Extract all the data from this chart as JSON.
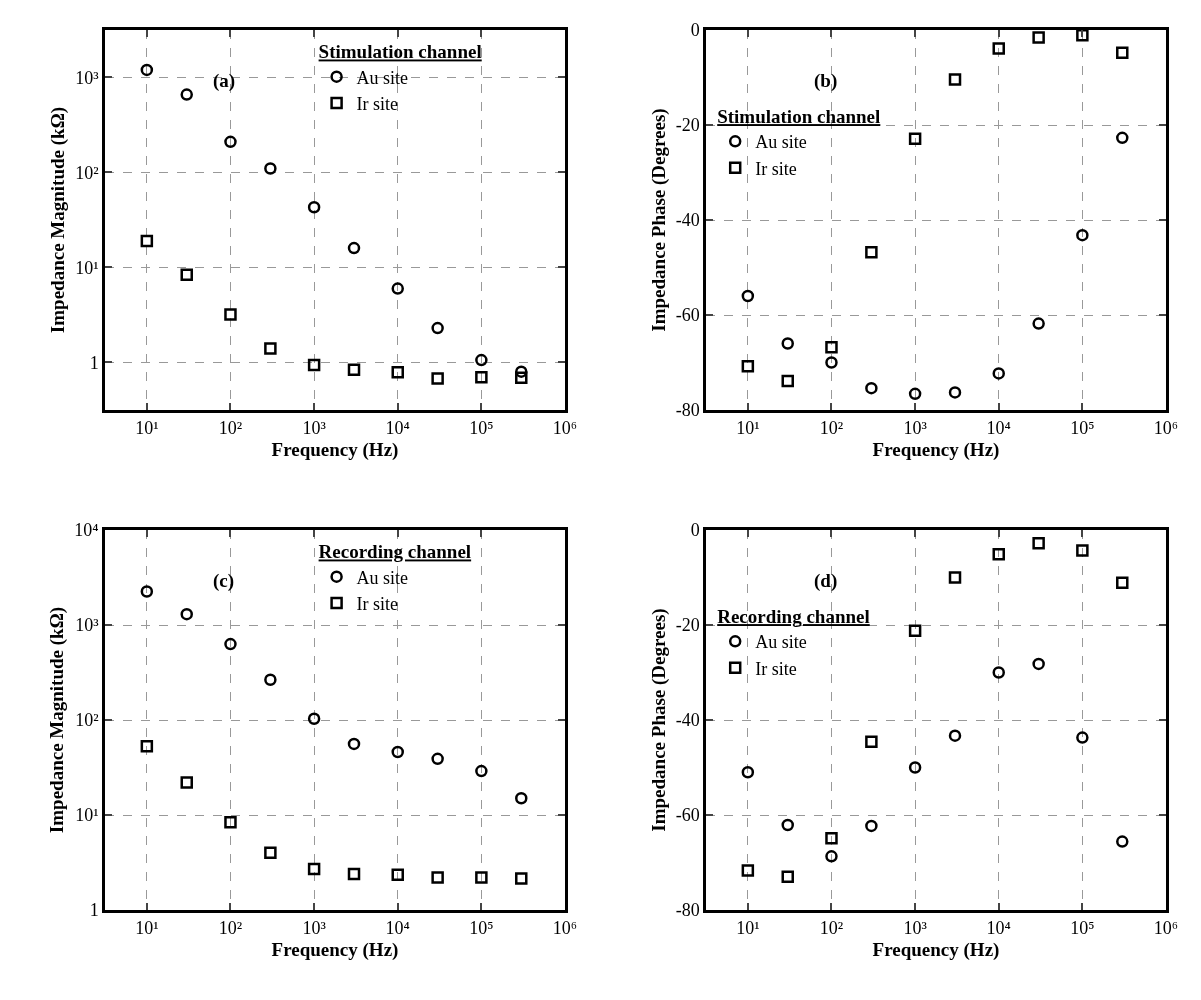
{
  "chart_data": [
    {
      "type": "scatter",
      "annotations": [
        "(a)"
      ],
      "xlabel": "Frequency (Hz)",
      "ylabel": "Impedance Magnitude (kΩ)",
      "legend_title": "Stimulation channel",
      "legend": "top right",
      "log": "xy",
      "grid": true,
      "x": [
        10,
        30,
        100,
        300,
        1000,
        3000,
        10000,
        30000,
        100000,
        300000
      ],
      "xlim": [
        3.16,
        1000000
      ],
      "xticks": [
        {
          "value": 10,
          "label": "10¹"
        },
        {
          "value": 100,
          "label": "10²"
        },
        {
          "value": 1000,
          "label": "10³"
        },
        {
          "value": 10000,
          "label": "10⁴"
        },
        {
          "value": 100000,
          "label": "10⁵"
        },
        {
          "value": 1000000,
          "label": "10⁶"
        }
      ],
      "ylim": [
        0.316,
        3160
      ],
      "yticks": [
        1,
        {
          "value": 10,
          "label": "10¹"
        },
        {
          "value": 100,
          "label": "10²"
        },
        {
          "value": 1000,
          "label": "10³"
        }
      ],
      "series": [
        {
          "name": "Au site",
          "color": "#000000",
          "marker": "circle",
          "values": [
            1200,
            660,
            210,
            110,
            43,
            16,
            6,
            2.3,
            1.06,
            0.8
          ]
        },
        {
          "name": "Ir site",
          "color": "#000000",
          "marker": "square",
          "values": [
            19,
            8.4,
            3.2,
            1.4,
            0.94,
            0.84,
            0.79,
            0.68,
            0.7,
            0.69
          ]
        }
      ]
    },
    {
      "type": "scatter",
      "annotations": [
        "(b)"
      ],
      "xlabel": "Frequency (Hz)",
      "ylabel": "Impedance Phase (Degrees)",
      "legend_title": "Stimulation channel",
      "legend": "top left",
      "log": "x",
      "grid": true,
      "x": [
        10,
        30,
        100,
        300,
        1000,
        3000,
        10000,
        30000,
        100000,
        300000
      ],
      "xlim": [
        3.16,
        1000000
      ],
      "xticks": [
        {
          "value": 10,
          "label": "10¹"
        },
        {
          "value": 100,
          "label": "10²"
        },
        {
          "value": 1000,
          "label": "10³"
        },
        {
          "value": 10000,
          "label": "10⁴"
        },
        {
          "value": 100000,
          "label": "10⁵"
        },
        {
          "value": 1000000,
          "label": "10⁶"
        }
      ],
      "ylim": [
        -80,
        0
      ],
      "yticks": [
        -80,
        -60,
        -40,
        -20,
        0
      ],
      "series": [
        {
          "name": "Au site",
          "color": "#000000",
          "marker": "circle",
          "values": [
            -56,
            -66,
            -70,
            -75.4,
            -76.6,
            -76.3,
            -72.3,
            -61.8,
            -43.2,
            -22.7
          ]
        },
        {
          "name": "Ir site",
          "color": "#000000",
          "marker": "square",
          "values": [
            -70.8,
            -73.9,
            -66.8,
            -46.8,
            -22.9,
            -10.4,
            -3.9,
            -1.6,
            -1.1,
            -4.8
          ]
        }
      ]
    },
    {
      "type": "scatter",
      "annotations": [
        "(c)"
      ],
      "xlabel": "Frequency (Hz)",
      "ylabel": "Impedance Magnitude (kΩ)",
      "legend_title": "Recording channel",
      "legend": "top right",
      "log": "xy",
      "grid": true,
      "x": [
        10,
        30,
        100,
        300,
        1000,
        3000,
        10000,
        30000,
        100000,
        300000
      ],
      "xlim": [
        3.16,
        1000000
      ],
      "xticks": [
        {
          "value": 10,
          "label": "10¹"
        },
        {
          "value": 100,
          "label": "10²"
        },
        {
          "value": 1000,
          "label": "10³"
        },
        {
          "value": 10000,
          "label": "10⁴"
        },
        {
          "value": 100000,
          "label": "10⁵"
        },
        {
          "value": 1000000,
          "label": "10⁶"
        }
      ],
      "ylim": [
        1,
        10000
      ],
      "yticks": [
        1,
        {
          "value": 10,
          "label": "10¹"
        },
        {
          "value": 100,
          "label": "10²"
        },
        {
          "value": 1000,
          "label": "10³"
        },
        {
          "value": 10000,
          "label": "10⁴"
        }
      ],
      "series": [
        {
          "name": "Au site",
          "color": "#000000",
          "marker": "circle",
          "values": [
            2250,
            1300,
            630,
            265,
            103,
            56,
            46,
            39,
            29,
            15
          ]
        },
        {
          "name": "Ir site",
          "color": "#000000",
          "marker": "square",
          "values": [
            53,
            22,
            8.4,
            4.0,
            2.7,
            2.4,
            2.35,
            2.2,
            2.2,
            2.15
          ]
        }
      ]
    },
    {
      "type": "scatter",
      "annotations": [
        "(d)"
      ],
      "xlabel": "Frequency (Hz)",
      "ylabel": "Impedance Phase (Degrees)",
      "legend_title": "Recording channel",
      "legend": "top left",
      "log": "x",
      "grid": true,
      "x": [
        10,
        30,
        100,
        300,
        1000,
        3000,
        10000,
        30000,
        100000,
        300000
      ],
      "xlim": [
        3.16,
        1000000
      ],
      "xticks": [
        {
          "value": 10,
          "label": "10¹"
        },
        {
          "value": 100,
          "label": "10²"
        },
        {
          "value": 1000,
          "label": "10³"
        },
        {
          "value": 10000,
          "label": "10⁴"
        },
        {
          "value": 100000,
          "label": "10⁵"
        },
        {
          "value": 1000000,
          "label": "10⁶"
        }
      ],
      "ylim": [
        -80,
        0
      ],
      "yticks": [
        -80,
        -60,
        -40,
        -20,
        0
      ],
      "series": [
        {
          "name": "Au site",
          "color": "#000000",
          "marker": "circle",
          "values": [
            -51,
            -62.1,
            -68.7,
            -62.3,
            -50,
            -43.3,
            -30,
            -28.2,
            -43.7,
            -65.6
          ]
        },
        {
          "name": "Ir site",
          "color": "#000000",
          "marker": "square",
          "values": [
            -71.7,
            -73,
            -64.9,
            -44.6,
            -21.2,
            -10,
            -5.1,
            -2.8,
            -4.3,
            -11.1
          ]
        }
      ]
    }
  ]
}
